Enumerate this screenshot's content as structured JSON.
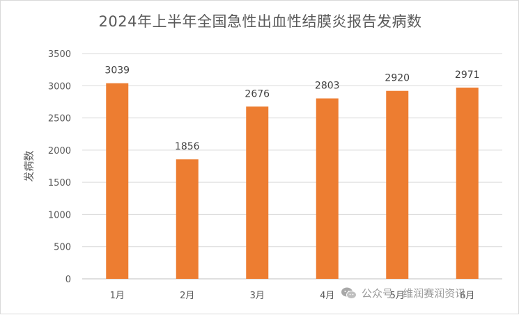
{
  "chart_data": {
    "type": "bar",
    "title": "2024年上半年全国急性出血性结膜炎报告发病数",
    "ylabel": "发病数",
    "xlabel": "",
    "categories": [
      "1月",
      "2月",
      "3月",
      "4月",
      "5月",
      "6月"
    ],
    "values": [
      3039,
      1856,
      2676,
      2803,
      2920,
      2971
    ],
    "ylim": [
      0,
      3500
    ],
    "yticks": [
      "0",
      "500",
      "1000",
      "1500",
      "2000",
      "2500",
      "3000",
      "3500"
    ],
    "grid": true,
    "bar_color": "#ED7D31",
    "data_labels": true
  },
  "watermark": {
    "icon": "wechat-icon",
    "text": "公众号 · 维润赛润资讯"
  }
}
